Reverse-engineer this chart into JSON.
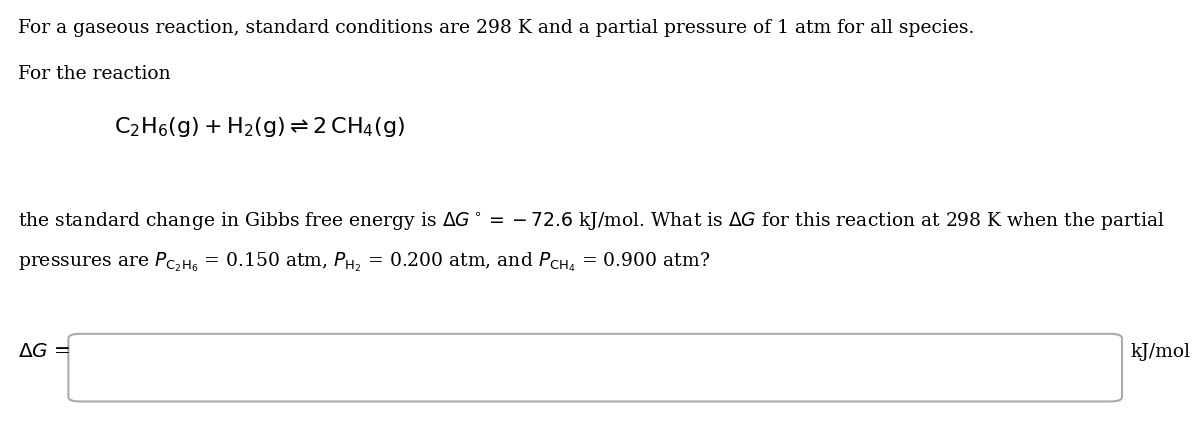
{
  "bg_color": "#ffffff",
  "text_color": "#000000",
  "line1": "For a gaseous reaction, standard conditions are 298 K and a partial pressure of 1 atm for all species.",
  "line2": "For the reaction",
  "line3_gibbs": "the standard change in Gibbs free energy is $\\Delta G^\\circ = -72.6$ kJ/mol. What is $\\Delta G$ for this reaction at 298 K when the partial",
  "line4_pressures": "pressures are $P_{\\mathrm{C_2H_6}}$ = 0.150 atm, $P_{\\mathrm{H_2}}$ = 0.200 atm, and $P_{\\mathrm{CH_4}}$ = 0.900 atm?",
  "answer_label": "$\\Delta G$ =",
  "answer_unit": "kJ/mol",
  "font_size_main": 13.5,
  "font_size_reaction": 16,
  "box_edge_color": "#aaaaaa",
  "box_face_color": "#ffffff"
}
